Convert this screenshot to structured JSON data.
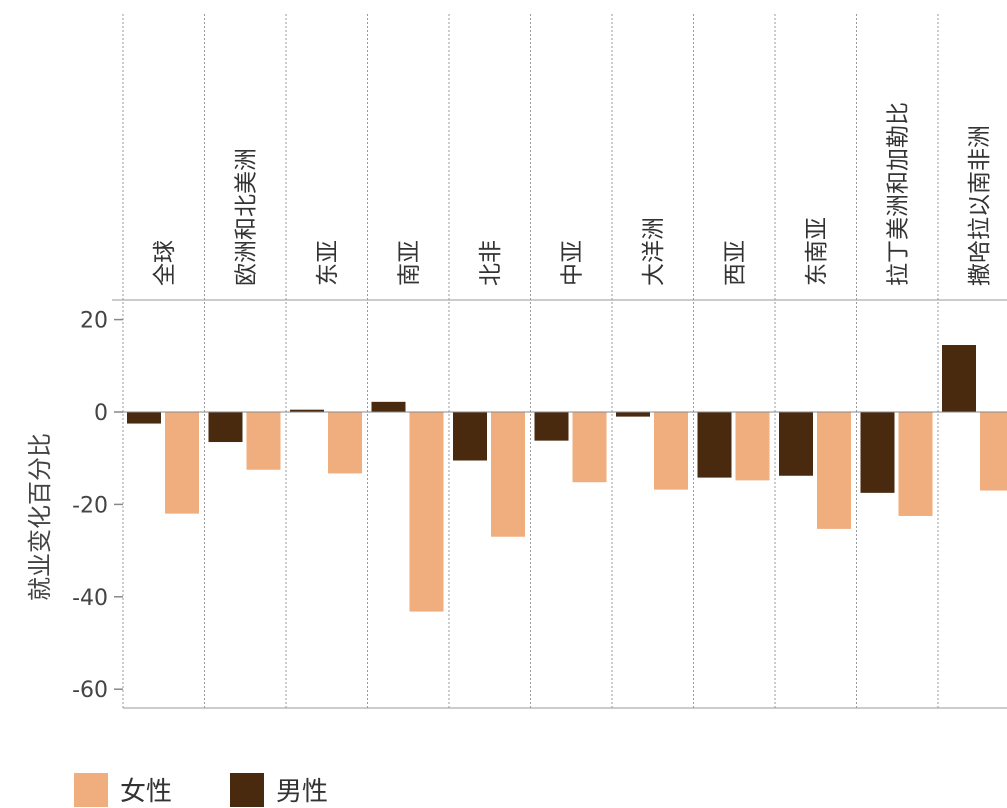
{
  "chart_data": {
    "type": "bar",
    "ylabel": "就业变化百分比",
    "xlabel": "",
    "title": "",
    "ylim": [
      -64,
      24
    ],
    "yticks": [
      20,
      0,
      -20,
      -40,
      -60
    ],
    "grid": "vertical dotted separators between categories",
    "categories": [
      "全球",
      "欧洲和北美洲",
      "东亚",
      "南亚",
      "北非",
      "中亚",
      "大洋洲",
      "西亚",
      "东南亚",
      "拉丁美洲和加勒比",
      "撒哈拉以南非洲"
    ],
    "series": [
      {
        "name": "男性",
        "color": "#4a2a0f",
        "values": [
          -2.5,
          -6.5,
          0.5,
          2.2,
          -10.5,
          -6.2,
          -1.0,
          -14.2,
          -13.8,
          -17.5,
          14.5
        ]
      },
      {
        "name": "女性",
        "color": "#f0ad7e",
        "values": [
          -22.0,
          -12.5,
          -13.3,
          -43.2,
          -27.0,
          -15.2,
          -16.8,
          -14.8,
          -25.3,
          -22.5,
          -17.0
        ]
      }
    ],
    "legend_position": "bottom-left"
  },
  "legend": {
    "female": {
      "label": "女性",
      "color": "#f0ad7e"
    },
    "male": {
      "label": "男性",
      "color": "#4a2a0f"
    }
  }
}
